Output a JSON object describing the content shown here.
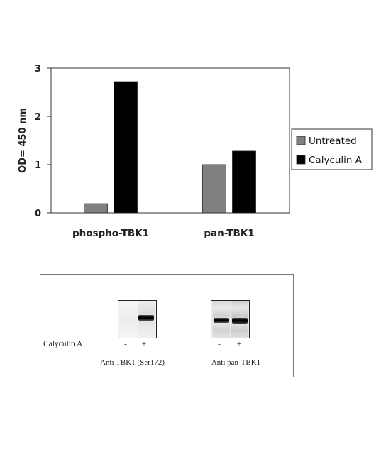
{
  "chart_data": {
    "type": "bar",
    "categories": [
      "phospho-TBK1",
      "pan-TBK1"
    ],
    "series": [
      {
        "name": "Untreated",
        "values": [
          0.19,
          1.0
        ],
        "color": "#808080"
      },
      {
        "name": "Calyculin A",
        "values": [
          2.72,
          1.28
        ],
        "color": "#000000"
      }
    ],
    "xlabel": "",
    "ylabel": "OD= 450 nm",
    "ylim": [
      0,
      3
    ],
    "yticks": [
      "0",
      "1",
      "2",
      "3"
    ],
    "grid": false,
    "legend_position": "right"
  },
  "blot": {
    "row_label": "Calyculin A",
    "signs": [
      "-",
      "+",
      "-",
      "+"
    ],
    "antibodies": [
      "Anti TBK1 (Ser172)",
      "Anti pan-TBK1"
    ]
  }
}
